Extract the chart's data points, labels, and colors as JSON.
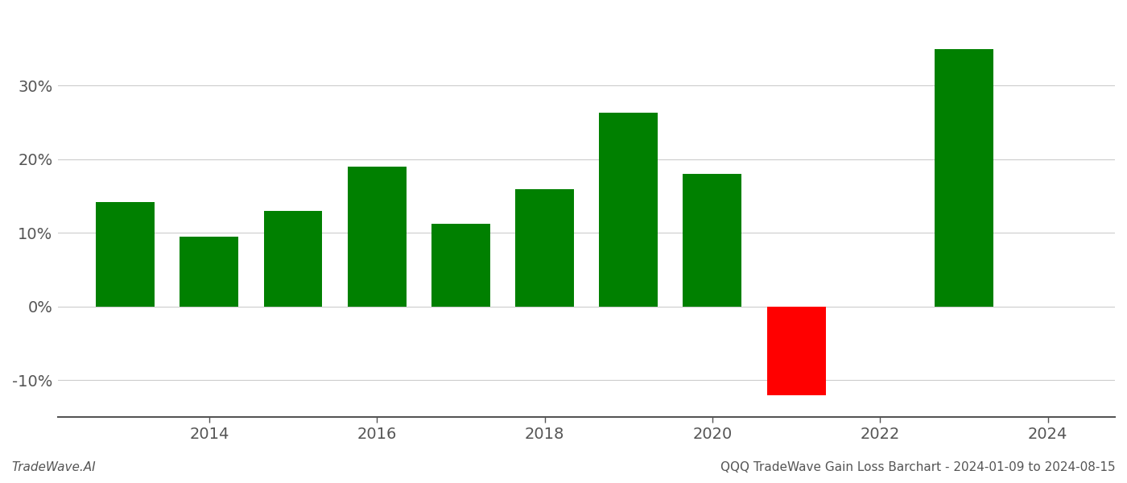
{
  "years": [
    2013,
    2014,
    2015,
    2016,
    2017,
    2018,
    2019,
    2020,
    2021,
    2023
  ],
  "values": [
    14.2,
    9.5,
    13.0,
    19.0,
    11.3,
    16.0,
    26.3,
    18.0,
    -12.0,
    35.0
  ],
  "colors": [
    "#008000",
    "#008000",
    "#008000",
    "#008000",
    "#008000",
    "#008000",
    "#008000",
    "#008000",
    "#ff0000",
    "#008000"
  ],
  "ylim": [
    -15,
    40
  ],
  "yticks": [
    -10,
    0,
    10,
    20,
    30
  ],
  "xticks": [
    2014,
    2016,
    2018,
    2020,
    2022,
    2024
  ],
  "xlim": [
    2012.2,
    2024.8
  ],
  "bar_width": 0.7,
  "footer_left": "TradeWave.AI",
  "footer_right": "QQQ TradeWave Gain Loss Barchart - 2024-01-09 to 2024-08-15",
  "background_color": "#ffffff",
  "grid_color": "#cccccc",
  "axis_color": "#555555",
  "tick_color": "#555555",
  "footer_color": "#555555"
}
